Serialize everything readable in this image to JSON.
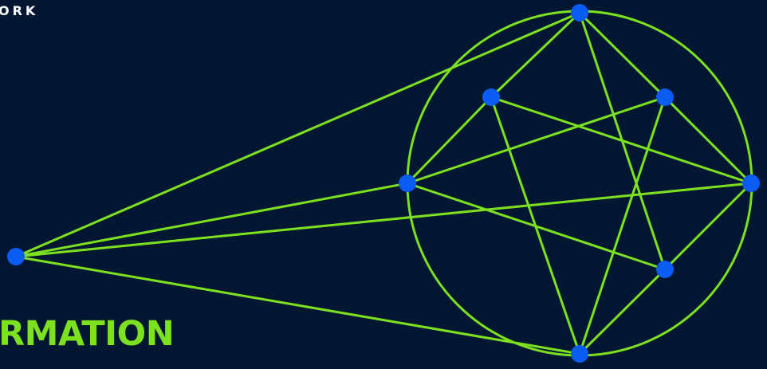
{
  "labels": {
    "top": "ORK",
    "title": "RMATION"
  },
  "colors": {
    "background": "#031733",
    "line": "#7ce11f",
    "node": "#0b5cf2",
    "top_text": "#ffffff",
    "title_text": "#7ce11f"
  }
}
